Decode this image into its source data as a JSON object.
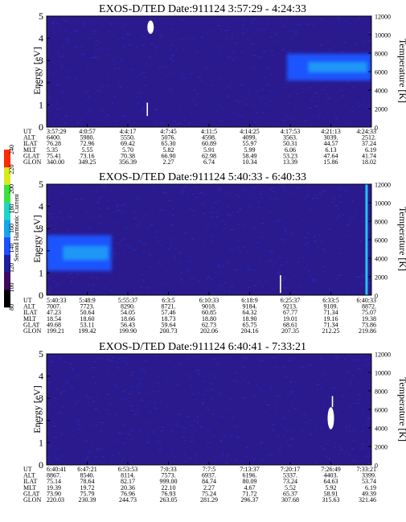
{
  "chart_data": [
    {
      "type": "heatmap",
      "title": "EXOS-D/TED   Date:911124   3:57:29 - 4:24:33",
      "ylabel": "Energy [eV]",
      "y2label": "Temperature [K]",
      "ylim": [
        0,
        5
      ],
      "y2lim": [
        0,
        12000
      ],
      "yticks": [
        "0",
        "1",
        "2",
        "3",
        "4",
        "5"
      ],
      "y2ticks": [
        "0",
        "2000",
        "4000",
        "6000",
        "8000",
        "10000",
        "12000"
      ],
      "ephemeris_labels": [
        "UT",
        "ALT",
        "ILAT",
        "MLT",
        "GLAT",
        "GLON"
      ],
      "ephemeris_rows": [
        [
          "3:57:29",
          "4:0:57",
          "4:4:17",
          "4:7:45",
          "4:11:5",
          "4:14:25",
          "4:17:53",
          "4:21:13",
          "4:24:33"
        ],
        [
          "6400.",
          "5980.",
          "5550.",
          "5076.",
          "4598.",
          "4099.",
          "3563.",
          "3039.",
          "2512."
        ],
        [
          "76.28",
          "72.96",
          "69.42",
          "65.30",
          "60.89",
          "55.97",
          "50.31",
          "44.57",
          "37.24"
        ],
        [
          "5.35",
          "5.55",
          "5.70",
          "5.82",
          "5.91",
          "5.99",
          "6.06",
          "6.13",
          "6.19"
        ],
        [
          "75.41",
          "73.16",
          "70.38",
          "66.90",
          "62.98",
          "58.49",
          "53.23",
          "47.64",
          "41.74"
        ],
        [
          "340.00",
          "349.25",
          "356.39",
          "2.27",
          "6.74",
          "10.34",
          "13.39",
          "15.86",
          "18.02"
        ]
      ],
      "features": [
        {
          "kind": "intensity_band",
          "x_range": [
            0.74,
            1.0
          ],
          "y_range": [
            2.1,
            3.3
          ],
          "level": 3.5
        },
        {
          "kind": "white_blob",
          "x": 0.32,
          "y_range": [
            4.2,
            4.8
          ]
        },
        {
          "kind": "white_spike",
          "x": 0.31,
          "y_range": [
            0.5,
            1.1
          ]
        }
      ]
    },
    {
      "type": "heatmap",
      "title": "EXOS-D/TED   Date:911124   5:40:33 - 6:40:33",
      "ylabel": "Energy [eV]",
      "y2label": "Temperature [K]",
      "ylim": [
        0,
        5
      ],
      "y2lim": [
        0,
        12000
      ],
      "yticks": [
        "0",
        "1",
        "2",
        "3",
        "4",
        "5"
      ],
      "y2ticks": [
        "0",
        "2000",
        "4000",
        "6000",
        "8000",
        "10000",
        "12000"
      ],
      "ephemeris_labels": [
        "UT",
        "ALT",
        "ILAT",
        "MLT",
        "GLAT",
        "GLON"
      ],
      "ephemeris_rows": [
        [
          "5:40:33",
          "5:48:9",
          "5:55:37",
          "6:3:5",
          "6:10:33",
          "6:18:9",
          "6:25:37",
          "6:33:5",
          "6:40:33"
        ],
        [
          "7007.",
          "7723.",
          "8290.",
          "8721.",
          "9018.",
          "9184.",
          "9213.",
          "9109.",
          "8872."
        ],
        [
          "47.23",
          "50.64",
          "54.05",
          "57.46",
          "60.85",
          "64.32",
          "67.77",
          "71.34",
          "75.07"
        ],
        [
          "18.54",
          "18.60",
          "18.66",
          "18.73",
          "18.80",
          "18.90",
          "19.01",
          "19.16",
          "19.38"
        ],
        [
          "49.68",
          "53.11",
          "56.43",
          "59.64",
          "62.73",
          "65.75",
          "68.61",
          "71.34",
          "73.86"
        ],
        [
          "199.21",
          "199.42",
          "199.90",
          "200.73",
          "202.06",
          "204.16",
          "207.35",
          "212.25",
          "219.86"
        ]
      ],
      "features": [
        {
          "kind": "intensity_band",
          "x_range": [
            0.0,
            0.2
          ],
          "y_range": [
            1.1,
            2.7
          ],
          "level": 3.5
        },
        {
          "kind": "vertical_line",
          "x": 0.985,
          "y_range": [
            0.0,
            5.0
          ],
          "level": 5
        },
        {
          "kind": "white_spike",
          "x": 0.72,
          "y_range": [
            0.1,
            0.9
          ]
        }
      ]
    },
    {
      "type": "heatmap",
      "title": "EXOS-D/TED   Date:911124   6:40:41 - 7:33:21",
      "ylabel": "Energy [eV]",
      "y2label": "Temperature [K]",
      "ylim": [
        0,
        5
      ],
      "y2lim": [
        0,
        12000
      ],
      "yticks": [
        "0",
        "1",
        "2",
        "3",
        "4",
        "5"
      ],
      "y2ticks": [
        "0",
        "2000",
        "4000",
        "6000",
        "8000",
        "10000",
        "12000"
      ],
      "ephemeris_labels": [
        "UT",
        "ALT",
        "ILAT",
        "MLT",
        "GLAT",
        "GLON"
      ],
      "ephemeris_rows": [
        [
          "6:40:41",
          "6:47:21",
          "6:53:53",
          "7:0:33",
          "7:7:5",
          "7:13:37",
          "7:20:17",
          "7:26:49",
          "7:33:21"
        ],
        [
          "8867.",
          "8540.",
          "8114.",
          "7573.",
          "6937.",
          "6196.",
          "5337.",
          "4403.",
          "3399."
        ],
        [
          "75.14",
          "78.64",
          "82.17",
          "999.00",
          "84.74",
          "80.09",
          "73.24",
          "64.63",
          "53.74"
        ],
        [
          "19.39",
          "19.72",
          "20.36",
          "22.10",
          "2.27",
          "4.67",
          "5.52",
          "5.92",
          "6.19"
        ],
        [
          "73.90",
          "75.79",
          "76.96",
          "76.93",
          "75.24",
          "71.72",
          "65.37",
          "58.91",
          "49.39"
        ],
        [
          "220.03",
          "230.39",
          "244.73",
          "263.05",
          "281.29",
          "296.37",
          "307.68",
          "315.63",
          "321.46"
        ]
      ],
      "features": [
        {
          "kind": "white_blob",
          "x": 0.875,
          "y_range": [
            1.6,
            2.6
          ]
        },
        {
          "kind": "white_spike",
          "x": 0.88,
          "y_range": [
            2.6,
            3.1
          ]
        }
      ]
    }
  ],
  "colorbar": {
    "label": "Second Harmonic Current",
    "ticks": [
      "80",
      "100",
      "120",
      "140",
      "160",
      "180",
      "200",
      "220",
      "240"
    ],
    "colors": [
      "#000000",
      "#3d0a5e",
      "#1e1e9e",
      "#1f4fff",
      "#15a6e8",
      "#21d4c8",
      "#3ce23c",
      "#d8ea1a",
      "#ff2a00"
    ]
  },
  "colors": {
    "background": "#2b1a8e",
    "speckle_a": "#3a28b8",
    "speckle_b": "#1a2cc4",
    "band_deep": "#1f55ff",
    "band_bright": "#22c3f0"
  }
}
